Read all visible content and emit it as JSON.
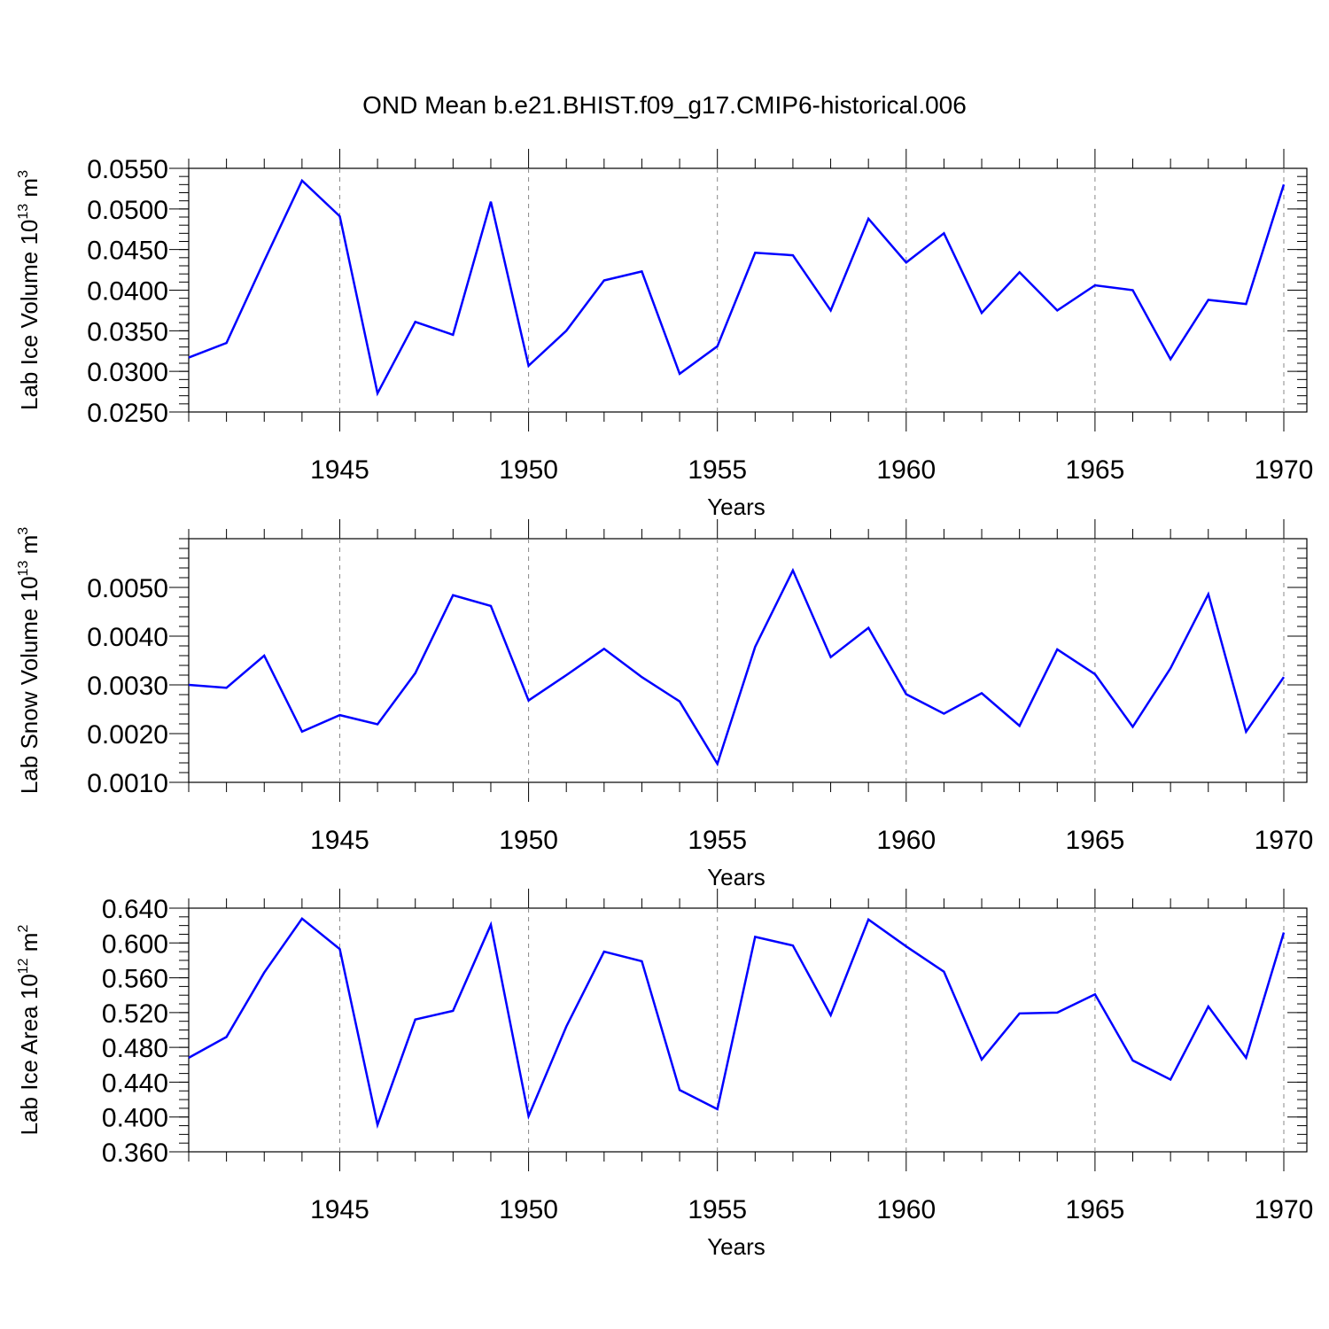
{
  "title": "OND Mean b.e21.BHIST.f09_g17.CMIP6-historical.006",
  "colors": {
    "series": "#0000ff",
    "axis": "#000000",
    "grid": "#888888"
  },
  "chart_data": [
    {
      "type": "line",
      "ylabel_main": "Lab Ice Volume 10",
      "ylabel_exp": "13",
      "ylabel_unit": " m",
      "ylabel_unit_exp": "3",
      "xlabel": "Years",
      "xlim": [
        1941,
        1970
      ],
      "ylim": [
        0.025,
        0.055
      ],
      "yticks": [
        0.025,
        0.03,
        0.035,
        0.04,
        0.045,
        0.05,
        0.055
      ],
      "ytick_labels": [
        "0.0250",
        "0.0300",
        "0.0350",
        "0.0400",
        "0.0450",
        "0.0500",
        "0.0550"
      ],
      "yminor_step": 0.001,
      "xticks": [
        1945,
        1950,
        1955,
        1960,
        1965,
        1970
      ],
      "xtick_labels": [
        "1945",
        "1950",
        "1955",
        "1960",
        "1965",
        "1970"
      ],
      "grid_x": true,
      "x": [
        1941,
        1942,
        1943,
        1944,
        1945,
        1946,
        1947,
        1948,
        1949,
        1950,
        1951,
        1952,
        1953,
        1954,
        1955,
        1956,
        1957,
        1958,
        1959,
        1960,
        1961,
        1962,
        1963,
        1964,
        1965,
        1966,
        1967,
        1968,
        1969,
        1970
      ],
      "y": [
        0.0317,
        0.0335,
        0.0436,
        0.0535,
        0.0491,
        0.0273,
        0.0361,
        0.0345,
        0.0509,
        0.0307,
        0.035,
        0.0412,
        0.0423,
        0.0297,
        0.0331,
        0.0446,
        0.0443,
        0.0375,
        0.0488,
        0.0434,
        0.047,
        0.0372,
        0.0422,
        0.0375,
        0.0406,
        0.04,
        0.0315,
        0.0388,
        0.0383,
        0.053
      ]
    },
    {
      "type": "line",
      "ylabel_main": "Lab Snow Volume 10",
      "ylabel_exp": "13",
      "ylabel_unit": " m",
      "ylabel_unit_exp": "3",
      "xlabel": "Years",
      "xlim": [
        1941,
        1970
      ],
      "ylim": [
        0.001,
        0.006
      ],
      "yticks": [
        0.001,
        0.002,
        0.003,
        0.004,
        0.005
      ],
      "ytick_labels": [
        "0.0010",
        "0.0020",
        "0.0030",
        "0.0040",
        "0.0050"
      ],
      "yminor_step": 0.0002,
      "xticks": [
        1945,
        1950,
        1955,
        1960,
        1965,
        1970
      ],
      "xtick_labels": [
        "1945",
        "1950",
        "1955",
        "1960",
        "1965",
        "1970"
      ],
      "grid_x": true,
      "x": [
        1941,
        1942,
        1943,
        1944,
        1945,
        1946,
        1947,
        1948,
        1949,
        1950,
        1951,
        1952,
        1953,
        1954,
        1955,
        1956,
        1957,
        1958,
        1959,
        1960,
        1961,
        1962,
        1963,
        1964,
        1965,
        1966,
        1967,
        1968,
        1969,
        1970
      ],
      "y": [
        0.003,
        0.00294,
        0.0036,
        0.00204,
        0.00238,
        0.00219,
        0.00324,
        0.00484,
        0.00462,
        0.00268,
        0.0032,
        0.00374,
        0.00316,
        0.00266,
        0.00138,
        0.00378,
        0.00535,
        0.00357,
        0.00417,
        0.00281,
        0.00241,
        0.00283,
        0.00216,
        0.00373,
        0.00322,
        0.00214,
        0.00334,
        0.00486,
        0.00204,
        0.00316
      ]
    },
    {
      "type": "line",
      "ylabel_main": "Lab Ice Area 10",
      "ylabel_exp": "12",
      "ylabel_unit": " m",
      "ylabel_unit_exp": "2",
      "xlabel": "Years",
      "xlim": [
        1941,
        1970
      ],
      "ylim": [
        0.36,
        0.64
      ],
      "yticks": [
        0.36,
        0.4,
        0.44,
        0.48,
        0.52,
        0.56,
        0.6,
        0.64
      ],
      "ytick_labels": [
        "0.360",
        "0.400",
        "0.440",
        "0.480",
        "0.520",
        "0.560",
        "0.600",
        "0.640"
      ],
      "yminor_step": 0.01,
      "xticks": [
        1945,
        1950,
        1955,
        1960,
        1965,
        1970
      ],
      "xtick_labels": [
        "1945",
        "1950",
        "1955",
        "1960",
        "1965",
        "1970"
      ],
      "grid_x": true,
      "x": [
        1941,
        1942,
        1943,
        1944,
        1945,
        1946,
        1947,
        1948,
        1949,
        1950,
        1951,
        1952,
        1953,
        1954,
        1955,
        1956,
        1957,
        1958,
        1959,
        1960,
        1961,
        1962,
        1963,
        1964,
        1965,
        1966,
        1967,
        1968,
        1969,
        1970
      ],
      "y": [
        0.468,
        0.492,
        0.566,
        0.628,
        0.593,
        0.391,
        0.512,
        0.522,
        0.621,
        0.401,
        0.504,
        0.59,
        0.579,
        0.431,
        0.409,
        0.607,
        0.597,
        0.517,
        0.627,
        0.596,
        0.567,
        0.466,
        0.519,
        0.52,
        0.541,
        0.465,
        0.443,
        0.527,
        0.468,
        0.612
      ]
    }
  ]
}
